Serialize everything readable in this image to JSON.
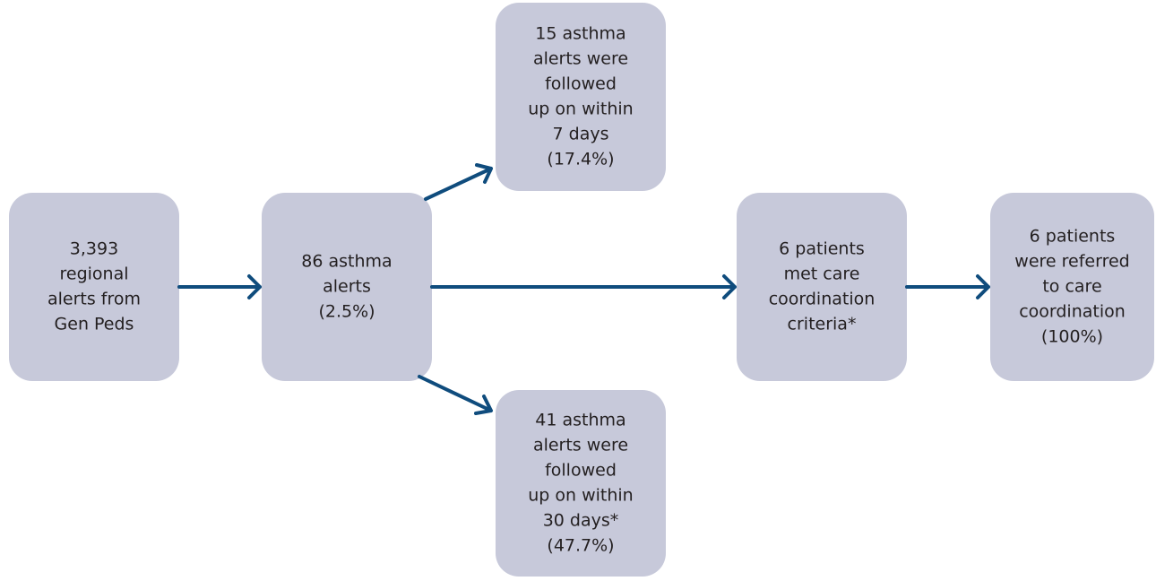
{
  "nodes": [
    {
      "lines": [
        "3,393",
        "regional",
        "alerts from",
        "Gen Peds"
      ]
    },
    {
      "lines": [
        "86 asthma",
        "alerts",
        "(2.5%)"
      ]
    },
    {
      "lines": [
        "15 asthma",
        "alerts were",
        "followed",
        "up on within",
        "7 days",
        "(17.4%)"
      ]
    },
    {
      "lines": [
        "41 asthma",
        "alerts were",
        "followed",
        "up on within",
        "30 days*",
        "(47.7%)"
      ]
    },
    {
      "lines": [
        "6 patients",
        "met care",
        "coordination",
        "criteria*"
      ]
    },
    {
      "lines": [
        "6 patients",
        "were referred",
        "to care",
        "coordination",
        "(100%)"
      ]
    }
  ]
}
